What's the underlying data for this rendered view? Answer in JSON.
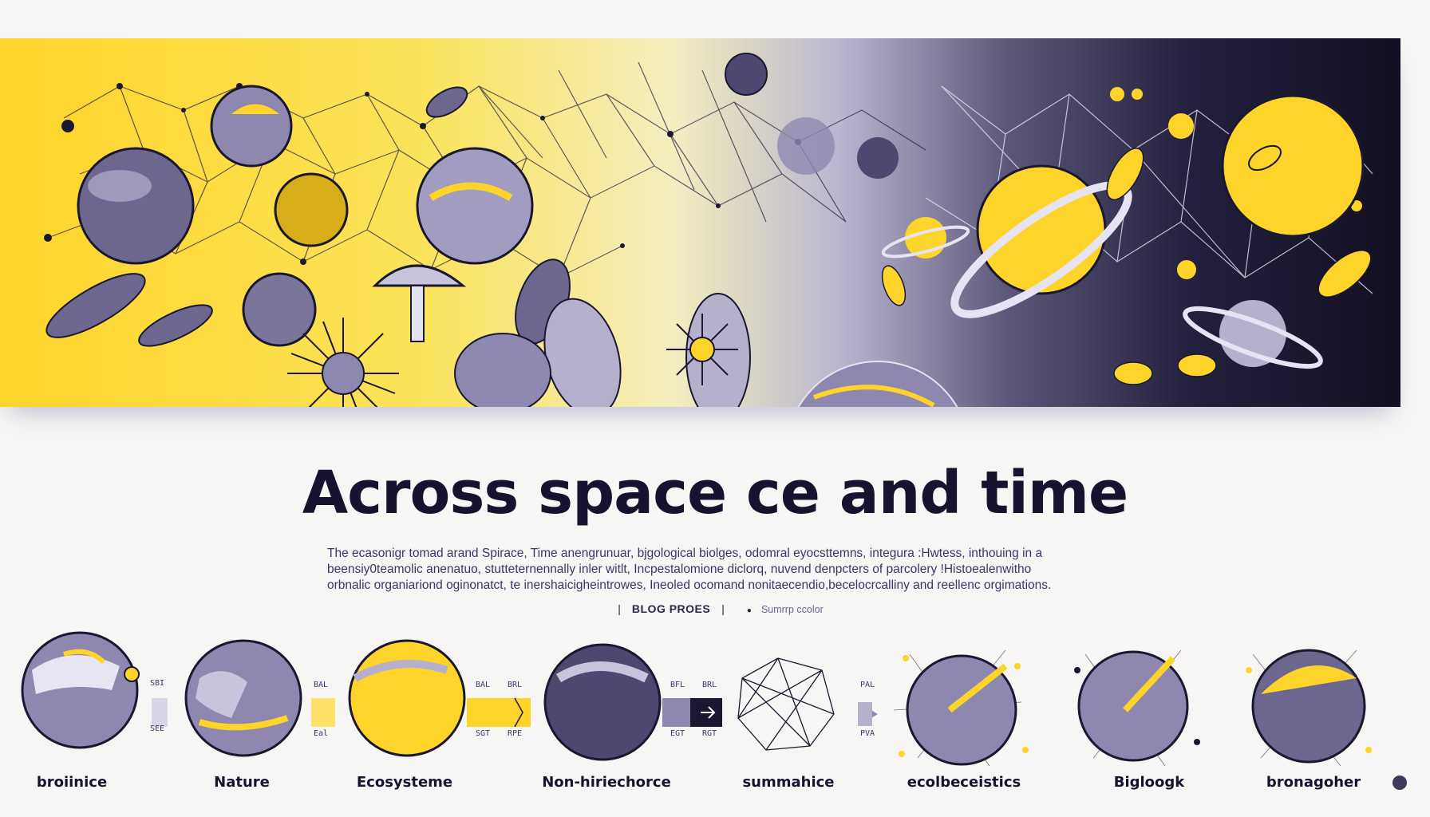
{
  "title": "Across space ce and time",
  "intro_lines": [
    "The ecasonigr tomad arand Spirace, Time anengrunuar, bjgological biolges, odomral eyocsttemns, integura :Hwtess, inthouing in a",
    "beensiy0teamolic anenatuo, stutteternennally inler witlt, Incpestalomione diclorq, nuvend denpcters of parcolery !Histoealenwitho",
    "orbnalic organiariond oginonatct, te inershaicigheintrowes, Ineoled ocomand nonitaecendio,becelocrcalliny and reellenc orgimations."
  ],
  "meta": {
    "category": "BLOG PROES",
    "tag": "Sumrrp ccolor"
  },
  "stages": [
    {
      "label": "broiinice",
      "side_top": "SBI",
      "side_bottom": "SEE"
    },
    {
      "label": "Nature",
      "side_top": "BAL",
      "side_bottom": "Eal"
    },
    {
      "label": "Ecosysteme",
      "side_top": "BAL",
      "side_top_2": "BRL",
      "side_bottom": "SGT",
      "side_bottom_2": "RPE"
    },
    {
      "label": "Non-hiriechorce",
      "side_top": "BFL",
      "side_top_2": "BRL",
      "side_bottom": "EGT",
      "side_bottom_2": "RGT"
    },
    {
      "label": "summahice",
      "side_top": "PAL",
      "side_bottom": "PVA"
    },
    {
      "label": "ecolbeceistics"
    },
    {
      "label": "Bigloogk"
    },
    {
      "label": "bronagoher"
    }
  ],
  "colors": {
    "yellow": "#ffd42a",
    "lavender": "#8e88b0",
    "deep": "#16132e",
    "navy": "#1a1730"
  }
}
